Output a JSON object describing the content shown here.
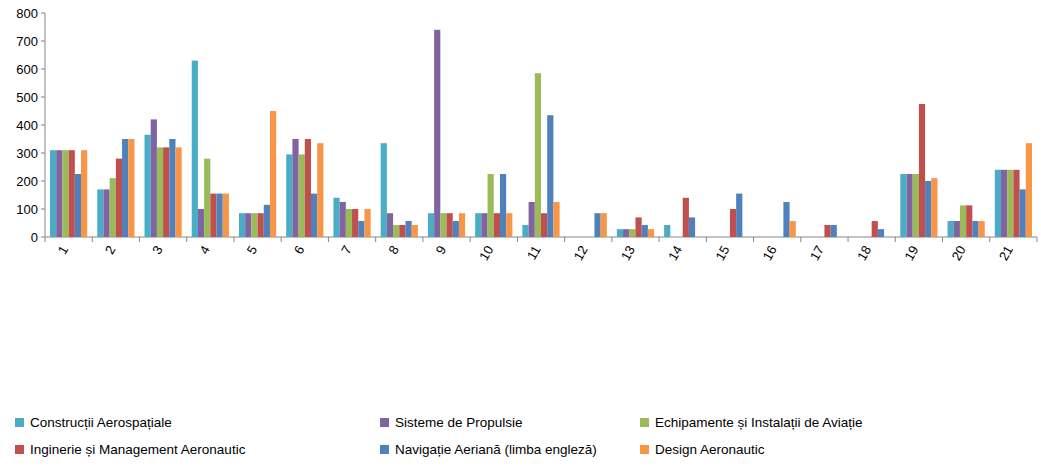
{
  "chart_data": {
    "type": "bar",
    "categories": [
      "1",
      "2",
      "3",
      "4",
      "5",
      "6",
      "7",
      "8",
      "9",
      "10",
      "11",
      "12",
      "13",
      "14",
      "15",
      "16",
      "17",
      "18",
      "19",
      "20",
      "21"
    ],
    "series": [
      {
        "name": "Construcții Aerospațiale",
        "color": "#4bacc6",
        "values": [
          310,
          170,
          365,
          630,
          85,
          295,
          140,
          335,
          85,
          85,
          43,
          0,
          28,
          43,
          0,
          0,
          0,
          0,
          225,
          57,
          240
        ]
      },
      {
        "name": "Sisteme de Propulsie",
        "color": "#8064a2",
        "values": [
          310,
          170,
          420,
          100,
          85,
          350,
          125,
          85,
          740,
          85,
          125,
          0,
          28,
          0,
          0,
          0,
          0,
          0,
          225,
          57,
          240
        ]
      },
      {
        "name": "Echipamente și Instalații de Aviație",
        "color": "#9bbb59",
        "values": [
          310,
          210,
          320,
          280,
          85,
          295,
          100,
          43,
          85,
          225,
          585,
          0,
          28,
          0,
          0,
          0,
          0,
          0,
          225,
          113,
          240
        ]
      },
      {
        "name": "Inginerie și Management Aeronautic",
        "color": "#c0504d",
        "values": [
          310,
          280,
          320,
          155,
          85,
          350,
          100,
          43,
          85,
          85,
          85,
          0,
          70,
          140,
          100,
          0,
          43,
          57,
          475,
          113,
          240
        ]
      },
      {
        "name": "Navigație Aeriană (limba engleză)",
        "color": "#4f81bd",
        "values": [
          225,
          350,
          350,
          155,
          115,
          155,
          57,
          57,
          57,
          225,
          435,
          85,
          43,
          70,
          155,
          125,
          43,
          28,
          200,
          57,
          170
        ]
      },
      {
        "name": "Design Aeronautic",
        "color": "#f79646",
        "values": [
          310,
          350,
          320,
          155,
          450,
          335,
          100,
          43,
          85,
          85,
          125,
          85,
          28,
          0,
          0,
          57,
          0,
          0,
          210,
          57,
          335
        ]
      }
    ],
    "ylim": [
      0,
      800
    ],
    "yticks": [
      0,
      100,
      200,
      300,
      400,
      500,
      600,
      700,
      800
    ],
    "grid": false,
    "legend": "bottom"
  }
}
